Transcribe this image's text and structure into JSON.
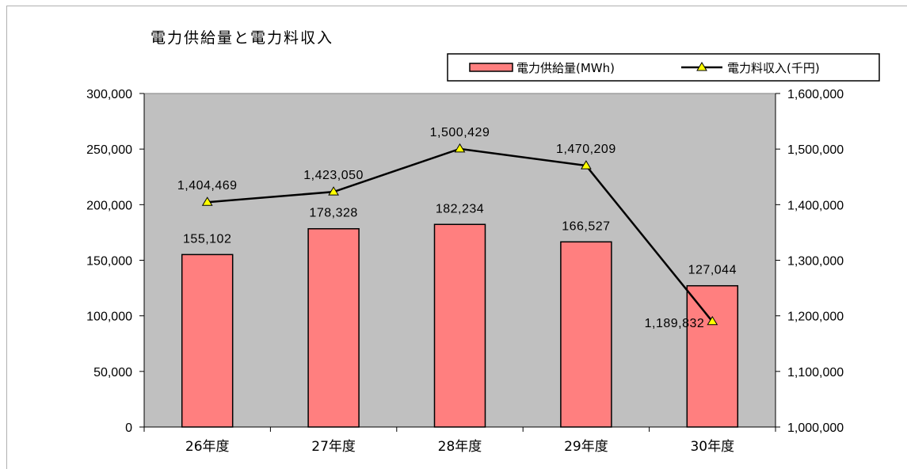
{
  "chart_data": {
    "type": "bar",
    "title": "電力供給量と電力料収入",
    "categories": [
      "26年度",
      "27年度",
      "28年度",
      "29年度",
      "30年度"
    ],
    "series": [
      {
        "name": "電力供給量(MWh)",
        "type": "bar",
        "axis": "left",
        "color": "#ff7f7f",
        "values": [
          155102,
          178328,
          182234,
          166527,
          127044
        ],
        "labels": [
          "155,102",
          "178,328",
          "182,234",
          "166,527",
          "127,044"
        ]
      },
      {
        "name": "電力料収入(千円)",
        "type": "line",
        "axis": "right",
        "color": "#000000",
        "marker_color": "#ffff00",
        "values": [
          1404469,
          1423050,
          1500429,
          1470209,
          1189832
        ],
        "labels": [
          "1,404,469",
          "1,423,050",
          "1,500,429",
          "1,470,209",
          "1,189,832"
        ]
      }
    ],
    "y_left": {
      "ylim": [
        0,
        300000
      ],
      "ticks": [
        0,
        50000,
        100000,
        150000,
        200000,
        250000,
        300000
      ],
      "tick_labels": [
        "0",
        "50,000",
        "100,000",
        "150,000",
        "200,000",
        "250,000",
        "300,000"
      ]
    },
    "y_right": {
      "ylim": [
        1000000,
        1600000
      ],
      "ticks": [
        1000000,
        1100000,
        1200000,
        1300000,
        1400000,
        1500000,
        1600000
      ],
      "tick_labels": [
        "1,000,000",
        "1,100,000",
        "1,200,000",
        "1,300,000",
        "1,400,000",
        "1,500,000",
        "1,600,000"
      ]
    },
    "plot_background": "#c0c0c0",
    "grid": false,
    "legend_position": "top-right"
  }
}
